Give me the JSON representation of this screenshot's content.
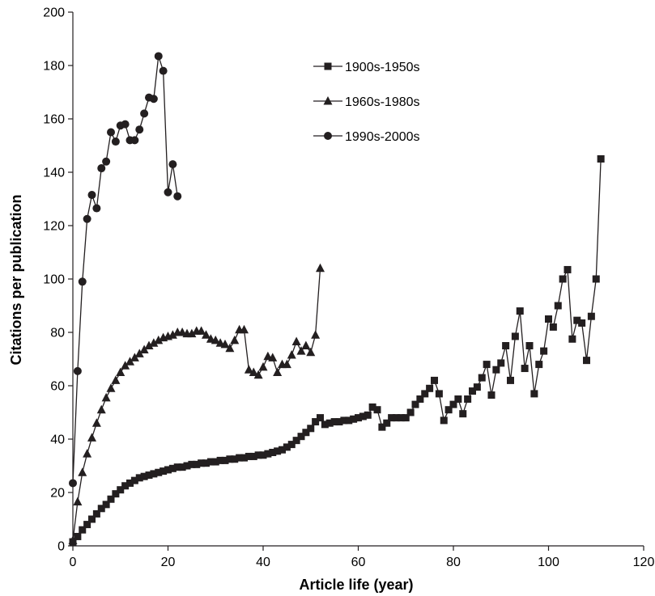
{
  "chart_data": {
    "type": "line",
    "xlabel": "Article life (year)",
    "ylabel": "Citations per publication",
    "xlim": [
      0,
      120
    ],
    "ylim": [
      0,
      200
    ],
    "xticks": [
      0,
      20,
      40,
      60,
      80,
      100,
      120
    ],
    "yticks": [
      0,
      20,
      40,
      60,
      80,
      100,
      120,
      140,
      160,
      180,
      200
    ],
    "grid": false,
    "legend_position": "top-center",
    "series": [
      {
        "name": "1900s-1950s",
        "marker": "square",
        "color": "#231f20",
        "x": [
          0,
          1,
          2,
          3,
          4,
          5,
          6,
          7,
          8,
          9,
          10,
          11,
          12,
          13,
          14,
          15,
          16,
          17,
          18,
          19,
          20,
          21,
          22,
          23,
          24,
          25,
          26,
          27,
          28,
          29,
          30,
          31,
          32,
          33,
          34,
          35,
          36,
          37,
          38,
          39,
          40,
          41,
          42,
          43,
          44,
          45,
          46,
          47,
          48,
          49,
          50,
          51,
          52,
          53,
          54,
          55,
          56,
          57,
          58,
          59,
          60,
          61,
          62,
          63,
          64,
          65,
          66,
          67,
          68,
          69,
          70,
          71,
          72,
          73,
          74,
          75,
          76,
          77,
          78,
          79,
          80,
          81,
          82,
          83,
          84,
          85,
          86,
          87,
          88,
          89,
          90,
          91,
          92,
          93,
          94,
          95,
          96,
          97,
          98,
          99,
          100,
          101,
          102,
          103,
          104,
          105,
          106,
          107,
          108,
          109,
          110,
          111
        ],
        "y": [
          1.5,
          3.5,
          6,
          8,
          10,
          12,
          14,
          15.5,
          17.5,
          19.5,
          21,
          22.5,
          23.5,
          24.5,
          25.5,
          26,
          26.5,
          27,
          27.5,
          28,
          28.5,
          29,
          29.5,
          29.5,
          30,
          30.5,
          30.5,
          31,
          31,
          31.5,
          31.5,
          32,
          32,
          32.5,
          32.5,
          33,
          33,
          33.5,
          33.5,
          34,
          34,
          34.5,
          35,
          35.5,
          36,
          37,
          38,
          39.5,
          41,
          42.5,
          44,
          46.5,
          48,
          45.5,
          46,
          46.5,
          46.5,
          47,
          47,
          47.5,
          48,
          48.5,
          49,
          52,
          51,
          44.5,
          46,
          48,
          48,
          48,
          48,
          50,
          53,
          55,
          57,
          59,
          62,
          57,
          47,
          51,
          53,
          55,
          49.5,
          55,
          58,
          59.5,
          63,
          68,
          56.5,
          66,
          68.5,
          75,
          62,
          78.5,
          88,
          66.5,
          75,
          57,
          68,
          73,
          85,
          82,
          90,
          100,
          103.5,
          77.5,
          84.5,
          83.5,
          69.5,
          86,
          100,
          145
        ]
      },
      {
        "name": "1960s-1980s",
        "marker": "triangle",
        "color": "#231f20",
        "x": [
          0,
          1,
          2,
          3,
          4,
          5,
          6,
          7,
          8,
          9,
          10,
          11,
          12,
          13,
          14,
          15,
          16,
          17,
          18,
          19,
          20,
          21,
          22,
          23,
          24,
          25,
          26,
          27,
          28,
          29,
          30,
          31,
          32,
          33,
          34,
          35,
          36,
          37,
          38,
          39,
          40,
          41,
          42,
          43,
          44,
          45,
          46,
          47,
          48,
          49,
          50,
          51,
          52
        ],
        "y": [
          2,
          16.5,
          27.5,
          34.5,
          40.5,
          46,
          51,
          55.5,
          59,
          62,
          65,
          67.5,
          69,
          70.5,
          72,
          73.5,
          75,
          76,
          77,
          78,
          78.5,
          79,
          80,
          80,
          79.5,
          79.5,
          80.5,
          80.5,
          79,
          77.5,
          77,
          76,
          75.5,
          74,
          77,
          81,
          81,
          66,
          65,
          64,
          67,
          71,
          70.5,
          65,
          68,
          68,
          71.5,
          76.5,
          73,
          75,
          72.5,
          79,
          104
        ]
      },
      {
        "name": "1990s-2000s",
        "marker": "circle",
        "color": "#231f20",
        "x": [
          0,
          1,
          2,
          3,
          4,
          5,
          6,
          7,
          8,
          9,
          10,
          11,
          12,
          13,
          14,
          15,
          16,
          17,
          18,
          19,
          20,
          21,
          22
        ],
        "y": [
          23.5,
          65.5,
          99,
          122.5,
          131.5,
          126.5,
          141.5,
          144,
          155,
          151.5,
          157.5,
          158,
          152,
          152,
          156,
          162,
          168,
          167.5,
          183.5,
          178,
          132.5,
          143,
          131
        ]
      }
    ]
  }
}
